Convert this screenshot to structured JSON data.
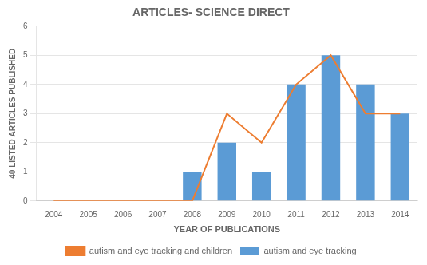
{
  "chart_data": {
    "type": "bar",
    "title": "ARTICLES- SCIENCE DIRECT",
    "xlabel": "YEAR OF PUBLICATIONS",
    "ylabel": "40 LISTED ARTICLES PUBLISHED",
    "categories": [
      2004,
      2005,
      2006,
      2007,
      2008,
      2009,
      2010,
      2011,
      2012,
      2013,
      2014
    ],
    "series": [
      {
        "name": "autism and eye tracking",
        "type": "bar",
        "color": "#5B9BD5",
        "values": [
          0,
          0,
          0,
          0,
          1,
          2,
          1,
          4,
          5,
          4,
          3
        ]
      },
      {
        "name": "autism and eye tracking and children",
        "type": "line",
        "color": "#ED7D31",
        "marker": "none",
        "values": [
          0,
          0,
          0,
          0,
          0,
          3,
          2,
          4,
          5,
          3,
          3
        ]
      }
    ],
    "ylim": [
      0,
      6
    ],
    "yticks": [
      0,
      1,
      2,
      3,
      4,
      5,
      6
    ],
    "grid": true,
    "legend": "bottom"
  }
}
